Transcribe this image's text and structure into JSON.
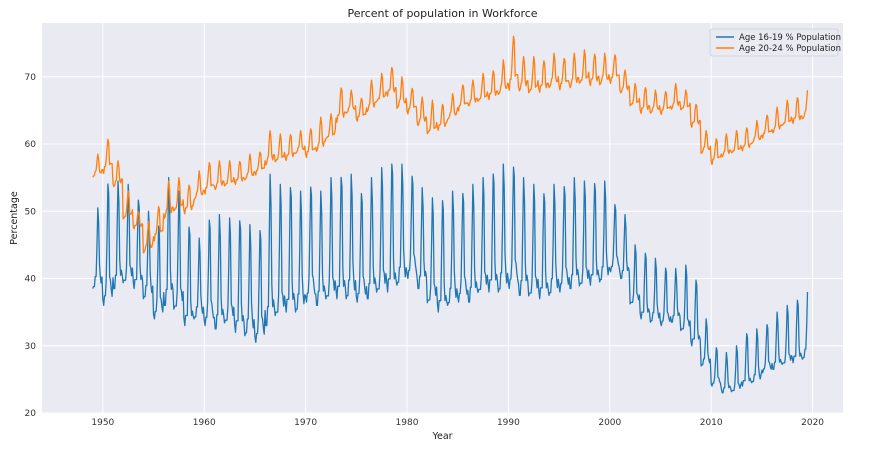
{
  "chart_data": {
    "type": "line",
    "title": "Percent of population in Workforce",
    "xlabel": "Year",
    "ylabel": "Percentage",
    "xlim": [
      1944,
      2023
    ],
    "ylim": [
      20,
      78
    ],
    "xticks": [
      1950,
      1960,
      1970,
      1980,
      1990,
      2000,
      2010,
      2020
    ],
    "yticks": [
      20,
      30,
      40,
      50,
      60,
      70
    ],
    "grid": true,
    "legend_position": "top-right",
    "series_sampling": "monthly data summarised per year: approx. annual minimum and maximum percentage",
    "series": [
      {
        "name": "Age 16-19 % Population",
        "color": "#1f77b4",
        "years": [
          1949,
          1950,
          1951,
          1952,
          1953,
          1954,
          1955,
          1956,
          1957,
          1958,
          1959,
          1960,
          1961,
          1962,
          1963,
          1964,
          1965,
          1966,
          1967,
          1968,
          1969,
          1970,
          1971,
          1972,
          1973,
          1974,
          1975,
          1976,
          1977,
          1978,
          1979,
          1980,
          1981,
          1982,
          1983,
          1984,
          1985,
          1986,
          1987,
          1988,
          1989,
          1990,
          1991,
          1992,
          1993,
          1994,
          1995,
          1996,
          1997,
          1998,
          1999,
          2000,
          2001,
          2002,
          2003,
          2004,
          2005,
          2006,
          2007,
          2008,
          2009,
          2010,
          2011,
          2012,
          2013,
          2014,
          2015,
          2016,
          2017,
          2018,
          2019
        ],
        "low": [
          38.5,
          36,
          38.5,
          39,
          38.5,
          37,
          34,
          36,
          35,
          33,
          34,
          33,
          32.5,
          33,
          32,
          31.5,
          30.5,
          33,
          34,
          35,
          35,
          36.5,
          36,
          36.5,
          37,
          37,
          36.5,
          37,
          37.5,
          38,
          39,
          40,
          38.5,
          36,
          35,
          36,
          36.5,
          36.5,
          37.5,
          38,
          38,
          38.5,
          37.5,
          37,
          37,
          37.5,
          38,
          38.5,
          38.5,
          39,
          39.5,
          41,
          40,
          36,
          34,
          33.5,
          33,
          33.5,
          32,
          30,
          27,
          24,
          23,
          23,
          24,
          24.5,
          26,
          26.5,
          27,
          27.5,
          28
        ],
        "high": [
          50.5,
          55,
          54.5,
          54,
          52,
          50,
          48.5,
          55,
          53,
          48,
          46,
          49.5,
          49.5,
          49,
          49,
          48,
          48,
          55.5,
          54,
          54,
          53,
          54.5,
          53,
          55,
          55.5,
          55.5,
          53.5,
          55,
          56.5,
          57.5,
          57,
          56,
          53.5,
          52,
          52,
          53,
          53.5,
          54,
          55,
          56,
          57,
          57.5,
          55,
          54,
          53,
          54,
          54.5,
          55,
          54.5,
          54.5,
          54.5,
          51.5,
          49.5,
          45,
          44,
          43,
          42,
          41.5,
          42,
          40,
          34,
          30,
          29,
          30,
          32,
          32.5,
          33.5,
          35,
          36,
          37,
          38
        ]
      },
      {
        "name": "Age 20-24 % Population",
        "color": "#ff7f0e",
        "years": [
          1949,
          1950,
          1951,
          1952,
          1953,
          1954,
          1955,
          1956,
          1957,
          1958,
          1959,
          1960,
          1961,
          1962,
          1963,
          1964,
          1965,
          1966,
          1967,
          1968,
          1969,
          1970,
          1971,
          1972,
          1973,
          1974,
          1975,
          1976,
          1977,
          1978,
          1979,
          1980,
          1981,
          1982,
          1983,
          1984,
          1985,
          1986,
          1987,
          1988,
          1989,
          1990,
          1991,
          1992,
          1993,
          1994,
          1995,
          1996,
          1997,
          1998,
          1999,
          2000,
          2001,
          2002,
          2003,
          2004,
          2005,
          2006,
          2007,
          2008,
          2009,
          2010,
          2011,
          2012,
          2013,
          2014,
          2015,
          2016,
          2017,
          2018,
          2019
        ],
        "low": [
          54.5,
          55,
          53,
          48,
          47,
          43,
          45,
          48,
          49,
          49,
          51,
          52,
          52.5,
          53,
          53.5,
          54,
          55,
          56,
          56.5,
          57,
          58,
          57.5,
          58,
          60,
          62.5,
          64,
          63,
          64,
          65.5,
          66.5,
          64.5,
          64,
          62,
          60.5,
          61.5,
          63,
          64.5,
          65,
          65.5,
          66,
          66.5,
          67,
          67,
          66.5,
          67,
          67.5,
          67.5,
          67.5,
          68,
          68,
          68,
          68.5,
          67,
          65,
          64,
          64,
          64,
          64.5,
          64.5,
          62,
          58,
          56.5,
          57.5,
          58,
          58.5,
          59.5,
          60.5,
          61,
          62,
          62.5,
          63
        ],
        "high": [
          58.5,
          61,
          57.5,
          53,
          50,
          48.5,
          51,
          54.5,
          55,
          54,
          56,
          57.5,
          57.5,
          57.5,
          57.5,
          58.5,
          59,
          62,
          61.5,
          61.5,
          62,
          62.5,
          64,
          64.5,
          68.5,
          68,
          67,
          69.5,
          70.5,
          71.5,
          70,
          68.5,
          67,
          66.5,
          66,
          67.5,
          69,
          69.5,
          70.5,
          71,
          72.5,
          76.5,
          73,
          73,
          72.5,
          73.5,
          73,
          73.5,
          74,
          73.5,
          73.5,
          73.5,
          71,
          69,
          68.5,
          68,
          68,
          69,
          68,
          66,
          62,
          61,
          61.5,
          62,
          62.5,
          63.5,
          64.5,
          65.5,
          66.5,
          67,
          68
        ]
      }
    ]
  }
}
